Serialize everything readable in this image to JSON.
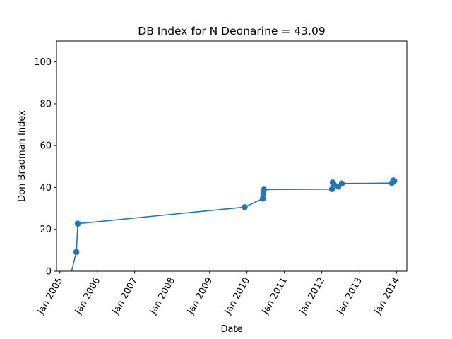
{
  "chart_data": {
    "type": "line",
    "title": "DB Index for N Deonarine = 43.09",
    "xlabel": "Date",
    "ylabel": "Don Bradman Index",
    "ylim": [
      0,
      110
    ],
    "xlim": [
      "2004-11-29",
      "2014-04-10"
    ],
    "yticks": [
      0,
      20,
      40,
      60,
      80,
      100
    ],
    "xticks": [
      {
        "date": "2005-01-01",
        "label": "Jan 2005"
      },
      {
        "date": "2006-01-01",
        "label": "Jan 2006"
      },
      {
        "date": "2007-01-01",
        "label": "Jan 2007"
      },
      {
        "date": "2008-01-01",
        "label": "Jan 2008"
      },
      {
        "date": "2009-01-01",
        "label": "Jan 2009"
      },
      {
        "date": "2010-01-01",
        "label": "Jan 2010"
      },
      {
        "date": "2011-01-01",
        "label": "Jan 2011"
      },
      {
        "date": "2012-01-01",
        "label": "Jan 2012"
      },
      {
        "date": "2013-01-01",
        "label": "Jan 2013"
      },
      {
        "date": "2014-01-01",
        "label": "Jan 2014"
      }
    ],
    "color": "#1f77b4",
    "grid": false,
    "series": [
      {
        "x": [
          "2005-04-15",
          "2005-06-11",
          "2005-06-25",
          "2009-12-10",
          "2010-06-05",
          "2010-06-10",
          "2010-06-16",
          "2012-04-10",
          "2012-04-17",
          "2012-04-26",
          "2012-06-11",
          "2012-07-15",
          "2013-11-15",
          "2013-11-30",
          "2013-12-08"
        ],
        "y": [
          -2,
          9.2,
          22.7,
          30.6,
          34.7,
          37.2,
          39.0,
          39.2,
          42.4,
          41.6,
          40.4,
          41.9,
          42.1,
          43.4,
          43.09
        ]
      }
    ]
  }
}
